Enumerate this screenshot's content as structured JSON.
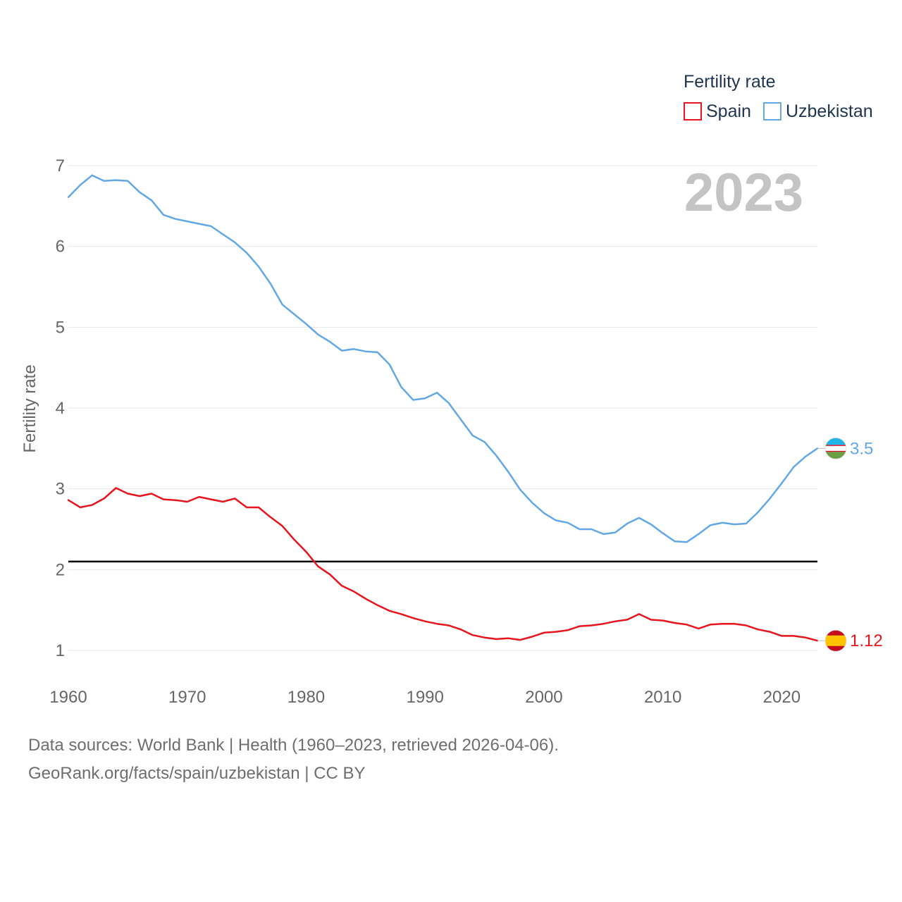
{
  "chart_data": {
    "type": "line",
    "title": "",
    "year_label": "2023",
    "ylabel": "Fertility rate",
    "xlabel": "",
    "xlim": [
      1960,
      2023
    ],
    "ylim": [
      0.6,
      7.0
    ],
    "x_ticks": [
      1960,
      1970,
      1980,
      1990,
      2000,
      2010,
      2020
    ],
    "y_ticks": [
      1,
      2,
      3,
      4,
      5,
      6,
      7
    ],
    "reference_line": {
      "value": 2.1,
      "color": "#000000"
    },
    "legend": {
      "title": "Fertility rate",
      "position": "top-right"
    },
    "x": [
      1960,
      1961,
      1962,
      1963,
      1964,
      1965,
      1966,
      1967,
      1968,
      1969,
      1970,
      1971,
      1972,
      1973,
      1974,
      1975,
      1976,
      1977,
      1978,
      1979,
      1980,
      1981,
      1982,
      1983,
      1984,
      1985,
      1986,
      1987,
      1988,
      1989,
      1990,
      1991,
      1992,
      1993,
      1994,
      1995,
      1996,
      1997,
      1998,
      1999,
      2000,
      2001,
      2002,
      2003,
      2004,
      2005,
      2006,
      2007,
      2008,
      2009,
      2010,
      2011,
      2012,
      2013,
      2014,
      2015,
      2016,
      2017,
      2018,
      2019,
      2020,
      2021,
      2022,
      2023
    ],
    "series": [
      {
        "name": "Spain",
        "color": "#e8141e",
        "end_label": "1.12",
        "flag": "spain-flag",
        "values": [
          2.86,
          2.77,
          2.8,
          2.88,
          3.01,
          2.94,
          2.91,
          2.94,
          2.87,
          2.86,
          2.84,
          2.9,
          2.87,
          2.84,
          2.88,
          2.77,
          2.77,
          2.65,
          2.54,
          2.37,
          2.22,
          2.04,
          1.94,
          1.8,
          1.73,
          1.64,
          1.56,
          1.49,
          1.45,
          1.4,
          1.36,
          1.33,
          1.31,
          1.26,
          1.19,
          1.16,
          1.14,
          1.15,
          1.13,
          1.17,
          1.22,
          1.23,
          1.25,
          1.3,
          1.31,
          1.33,
          1.36,
          1.38,
          1.45,
          1.38,
          1.37,
          1.34,
          1.32,
          1.27,
          1.32,
          1.33,
          1.33,
          1.31,
          1.26,
          1.23,
          1.18,
          1.18,
          1.16,
          1.12
        ]
      },
      {
        "name": "Uzbekistan",
        "color": "#62a8e6",
        "end_label": "3.5",
        "flag": "uzbekistan-flag",
        "values": [
          6.61,
          6.76,
          6.88,
          6.81,
          6.82,
          6.81,
          6.67,
          6.57,
          6.39,
          6.34,
          6.31,
          6.28,
          6.25,
          6.15,
          6.05,
          5.92,
          5.75,
          5.54,
          5.28,
          5.16,
          5.04,
          4.91,
          4.82,
          4.71,
          4.73,
          4.7,
          4.69,
          4.54,
          4.26,
          4.1,
          4.12,
          4.19,
          4.06,
          3.86,
          3.66,
          3.58,
          3.41,
          3.21,
          2.99,
          2.83,
          2.7,
          2.61,
          2.58,
          2.5,
          2.5,
          2.44,
          2.46,
          2.57,
          2.64,
          2.56,
          2.45,
          2.35,
          2.34,
          2.44,
          2.55,
          2.58,
          2.56,
          2.57,
          2.71,
          2.88,
          3.07,
          3.27,
          3.4,
          3.5
        ]
      }
    ]
  },
  "footer": {
    "line1": "Data sources: World Bank | Health (1960–2023, retrieved 2026-04-06).",
    "line2": "GeoRank.org/facts/spain/uzbekistan | CC BY"
  }
}
